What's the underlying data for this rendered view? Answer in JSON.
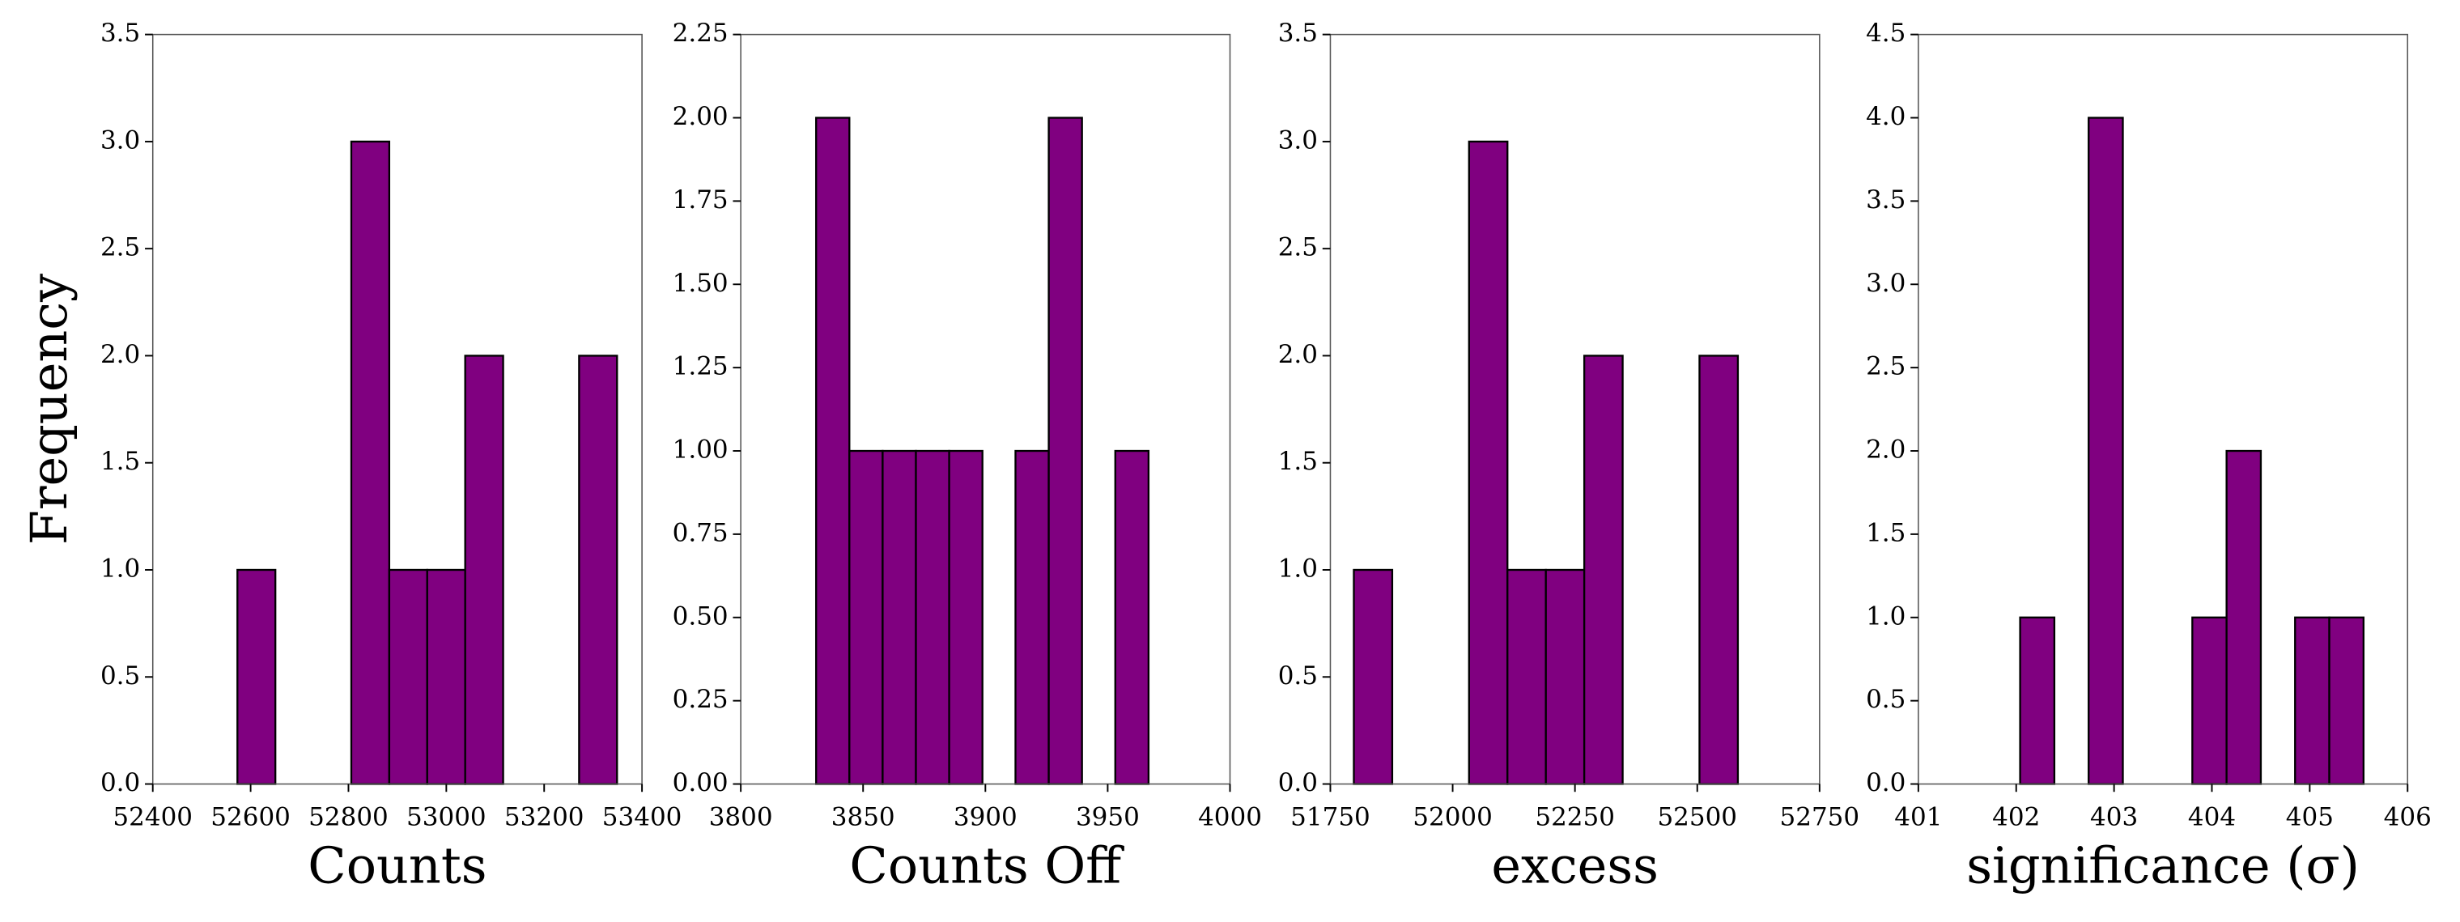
{
  "chart_data": [
    {
      "type": "histogram",
      "xlabel": "Counts",
      "ylabel": "Frequency",
      "color": "#800080",
      "edgecolor": "#000000",
      "bins": [
        52573,
        52650.6,
        52728.2,
        52805.8,
        52883.4,
        52961,
        53038.6,
        53116.2,
        53193.8,
        53271.4,
        53349
      ],
      "values": [
        1,
        0,
        0,
        3,
        1,
        1,
        2,
        0,
        0,
        2
      ],
      "xlim": [
        52400,
        53400
      ],
      "xticks": [
        52400,
        52600,
        52800,
        53000,
        53200,
        53400
      ],
      "ylim": [
        0,
        3.5
      ],
      "yticks": [
        {
          "value": 0,
          "label": "0.0"
        },
        {
          "value": 0.5,
          "label": "0.5"
        },
        {
          "value": 1,
          "label": "1.0"
        },
        {
          "value": 1.5,
          "label": "1.5"
        },
        {
          "value": 2,
          "label": "2.0"
        },
        {
          "value": 2.5,
          "label": "2.5"
        },
        {
          "value": 3,
          "label": "3.0"
        },
        {
          "value": 3.5,
          "label": "3.5"
        }
      ]
    },
    {
      "type": "histogram",
      "xlabel": "Counts Off",
      "color": "#800080",
      "edgecolor": "#000000",
      "bins": [
        3830.8,
        3844.4,
        3858.0,
        3871.6,
        3885.2,
        3898.8,
        3912.3,
        3925.9,
        3939.5,
        3953.1,
        3966.7
      ],
      "values": [
        2,
        1,
        1,
        1,
        1,
        0,
        1,
        2,
        0,
        1
      ],
      "xlim": [
        3800,
        4000
      ],
      "xticks": [
        3800,
        3850,
        3900,
        3950,
        4000
      ],
      "ylim": [
        0,
        2.25
      ],
      "yticks": [
        {
          "value": 0,
          "label": "0.00"
        },
        {
          "value": 0.25,
          "label": "0.25"
        },
        {
          "value": 0.5,
          "label": "0.50"
        },
        {
          "value": 0.75,
          "label": "0.75"
        },
        {
          "value": 1,
          "label": "1.00"
        },
        {
          "value": 1.25,
          "label": "1.25"
        },
        {
          "value": 1.5,
          "label": "1.50"
        },
        {
          "value": 1.75,
          "label": "1.75"
        },
        {
          "value": 2,
          "label": "2.00"
        },
        {
          "value": 2.25,
          "label": "2.25"
        }
      ]
    },
    {
      "type": "histogram",
      "xlabel": "excess",
      "color": "#800080",
      "edgecolor": "#000000",
      "bins": [
        51798,
        51876.5,
        51955,
        52033.5,
        52112,
        52190.5,
        52269,
        52347.5,
        52426,
        52504.5,
        52583
      ],
      "values": [
        1,
        0,
        0,
        3,
        1,
        1,
        2,
        0,
        0,
        2
      ],
      "xlim": [
        51750,
        52750
      ],
      "xticks": [
        51750,
        52000,
        52250,
        52500,
        52750
      ],
      "ylim": [
        0,
        3.5
      ],
      "yticks": [
        {
          "value": 0,
          "label": "0.0"
        },
        {
          "value": 0.5,
          "label": "0.5"
        },
        {
          "value": 1,
          "label": "1.0"
        },
        {
          "value": 1.5,
          "label": "1.5"
        },
        {
          "value": 2,
          "label": "2.0"
        },
        {
          "value": 2.5,
          "label": "2.5"
        },
        {
          "value": 3,
          "label": "3.0"
        },
        {
          "value": 3.5,
          "label": "3.5"
        }
      ]
    },
    {
      "type": "histogram",
      "xlabel": "significance (σ)",
      "color": "#800080",
      "edgecolor": "#000000",
      "bins": [
        402.04,
        402.39,
        402.74,
        403.09,
        403.44,
        403.8,
        404.15,
        404.5,
        404.85,
        405.2,
        405.55
      ],
      "values": [
        1,
        0,
        4,
        0,
        0,
        1,
        2,
        0,
        1,
        1
      ],
      "xlim": [
        401,
        406
      ],
      "xticks": [
        401,
        402,
        403,
        404,
        405,
        406
      ],
      "ylim": [
        0,
        4.5
      ],
      "yticks": [
        {
          "value": 0,
          "label": "0.0"
        },
        {
          "value": 0.5,
          "label": "0.5"
        },
        {
          "value": 1,
          "label": "1.0"
        },
        {
          "value": 1.5,
          "label": "1.5"
        },
        {
          "value": 2,
          "label": "2.0"
        },
        {
          "value": 2.5,
          "label": "2.5"
        },
        {
          "value": 3,
          "label": "3.0"
        },
        {
          "value": 3.5,
          "label": "3.5"
        },
        {
          "value": 4,
          "label": "4.0"
        },
        {
          "value": 4.5,
          "label": "4.5"
        }
      ]
    }
  ]
}
